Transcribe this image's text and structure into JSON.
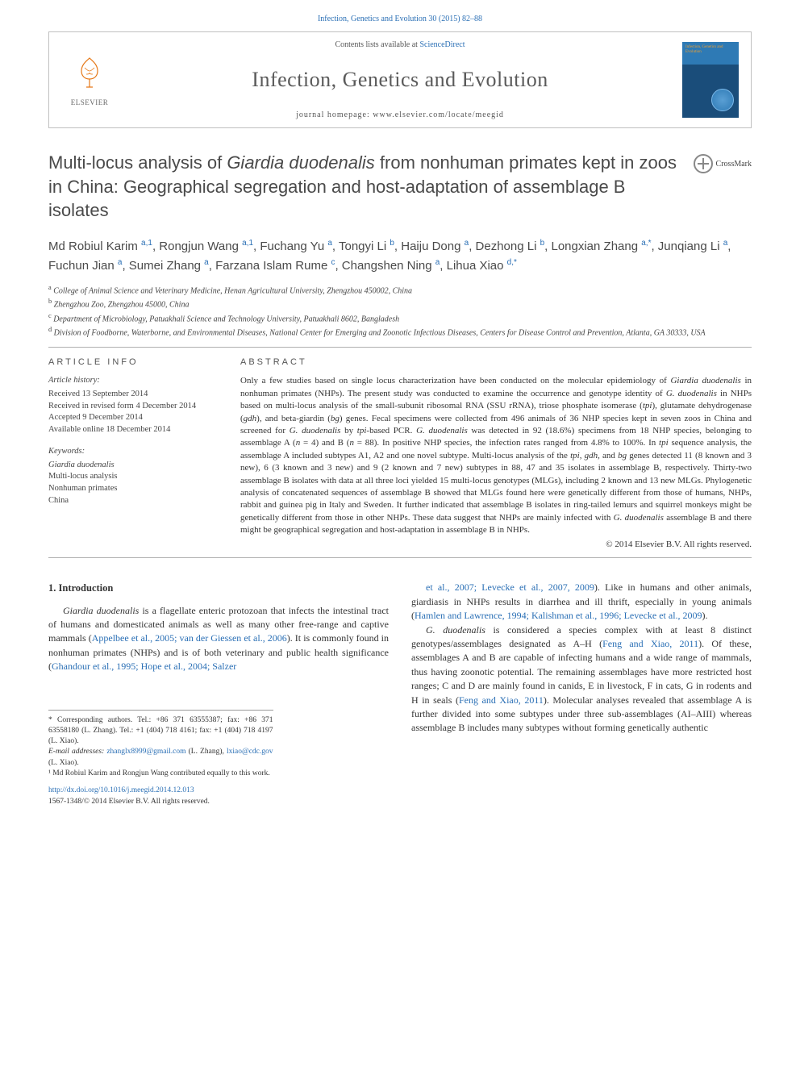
{
  "header": {
    "citation": "Infection, Genetics and Evolution 30 (2015) 82–88",
    "contents_prefix": "Contents lists available at ",
    "contents_link": "ScienceDirect",
    "journal_title": "Infection, Genetics and Evolution",
    "homepage_prefix": "journal homepage: ",
    "homepage_url": "www.elsevier.com/locate/meegid",
    "elsevier_label": "ELSEVIER",
    "cover_text": "Infection, Genetics and Evolution"
  },
  "crossmark": {
    "label": "CrossMark"
  },
  "title": {
    "html": "Multi-locus analysis of <em>Giardia duodenalis</em> from nonhuman primates kept in zoos in China: Geographical segregation and host-adaptation of assemblage B isolates"
  },
  "authors": {
    "html": "Md Robiul Karim <sup>a,1</sup>, Rongjun Wang <sup>a,1</sup>, Fuchang Yu <sup>a</sup>, Tongyi Li <sup>b</sup>, Haiju Dong <sup>a</sup>, Dezhong Li <sup>b</sup>, Longxian Zhang <sup>a,*</sup>, Junqiang Li <sup>a</sup>, Fuchun Jian <sup>a</sup>, Sumei Zhang <sup>a</sup>, Farzana Islam Rume <sup>c</sup>, Changshen Ning <sup>a</sup>, Lihua Xiao <sup>d,*</sup>"
  },
  "affiliations": [
    {
      "sup": "a",
      "text": "College of Animal Science and Veterinary Medicine, Henan Agricultural University, Zhengzhou 450002, China"
    },
    {
      "sup": "b",
      "text": "Zhengzhou Zoo, Zhengzhou 45000, China"
    },
    {
      "sup": "c",
      "text": "Department of Microbiology, Patuakhali Science and Technology University, Patuakhali 8602, Bangladesh"
    },
    {
      "sup": "d",
      "text": "Division of Foodborne, Waterborne, and Environmental Diseases, National Center for Emerging and Zoonotic Infectious Diseases, Centers for Disease Control and Prevention, Atlanta, GA 30333, USA"
    }
  ],
  "article_info": {
    "label": "ARTICLE INFO",
    "history_heading": "Article history:",
    "history": [
      "Received 13 September 2014",
      "Received in revised form 4 December 2014",
      "Accepted 9 December 2014",
      "Available online 18 December 2014"
    ],
    "keywords_heading": "Keywords:",
    "keywords": [
      "Giardia duodenalis",
      "Multi-locus analysis",
      "Nonhuman primates",
      "China"
    ]
  },
  "abstract": {
    "label": "ABSTRACT",
    "text_html": "Only a few studies based on single locus characterization have been conducted on the molecular epidemiology of <em>Giardia duodenalis</em> in nonhuman primates (NHPs). The present study was conducted to examine the occurrence and genotype identity of <em>G. duodenalis</em> in NHPs based on multi-locus analysis of the small-subunit ribosomal RNA (SSU rRNA), triose phosphate isomerase (<em>tpi</em>), glutamate dehydrogenase (<em>gdh</em>), and beta-giardin (<em>bg</em>) genes. Fecal specimens were collected from 496 animals of 36 NHP species kept in seven zoos in China and screened for <em>G. duodenalis</em> by <em>tpi</em>-based PCR. <em>G. duodenalis</em> was detected in 92 (18.6%) specimens from 18 NHP species, belonging to assemblage A (<em>n</em> = 4) and B (<em>n</em> = 88). In positive NHP species, the infection rates ranged from 4.8% to 100%. In <em>tpi</em> sequence analysis, the assemblage A included subtypes A1, A2 and one novel subtype. Multi-locus analysis of the <em>tpi</em>, <em>gdh</em>, and <em>bg</em> genes detected 11 (8 known and 3 new), 6 (3 known and 3 new) and 9 (2 known and 7 new) subtypes in 88, 47 and 35 isolates in assemblage B, respectively. Thirty-two assemblage B isolates with data at all three loci yielded 15 multi-locus genotypes (MLGs), including 2 known and 13 new MLGs. Phylogenetic analysis of concatenated sequences of assemblage B showed that MLGs found here were genetically different from those of humans, NHPs, rabbit and guinea pig in Italy and Sweden. It further indicated that assemblage B isolates in ring-tailed lemurs and squirrel monkeys might be genetically different from those in other NHPs. These data suggest that NHPs are mainly infected with <em>G. duodenalis</em> assemblage B and there might be geographical segregation and host-adaptation in assemblage B in NHPs.",
    "copyright": "© 2014 Elsevier B.V. All rights reserved."
  },
  "body": {
    "section_heading": "1. Introduction",
    "col1_html": "<em>Giardia duodenalis</em> is a flagellate enteric protozoan that infects the intestinal tract of humans and domesticated animals as well as many other free-range and captive mammals (<a href='#'>Appelbee et al., 2005; van der Giessen et al., 2006</a>). It is commonly found in nonhuman primates (NHPs) and is of both veterinary and public health significance (<a href='#'>Ghandour et al., 1995; Hope et al., 2004; Salzer</a>",
    "col2_p1_html": "<a href='#'>et al., 2007; Levecke et al., 2007, 2009</a>). Like in humans and other animals, giardiasis in NHPs results in diarrhea and ill thrift, especially in young animals (<a href='#'>Hamlen and Lawrence, 1994; Kalishman et al., 1996; Levecke et al., 2009</a>).",
    "col2_p2_html": "<em>G. duodenalis</em> is considered a species complex with at least 8 distinct genotypes/assemblages designated as A–H (<a href='#'>Feng and Xiao, 2011</a>). Of these, assemblages A and B are capable of infecting humans and a wide range of mammals, thus having zoonotic potential. The remaining assemblages have more restricted host ranges; C and D are mainly found in canids, E in livestock, F in cats, G in rodents and H in seals (<a href='#'>Feng and Xiao, 2011</a>). Molecular analyses revealed that assemblage A is further divided into some subtypes under three sub-assemblages (AI–AIII) whereas assemblage B includes many subtypes without forming genetically authentic"
  },
  "footnotes": {
    "corresponding": "* Corresponding authors. Tel.: +86 371 63555387; fax: +86 371 63558180 (L. Zhang). Tel.: +1 (404) 718 4161; fax: +1 (404) 718 4197 (L. Xiao).",
    "emails_label": "E-mail addresses: ",
    "email1": "zhanglx8999@gmail.com",
    "email1_suffix": " (L. Zhang), ",
    "email2": "lxiao@cdc.gov",
    "email2_suffix": " (L. Xiao).",
    "contrib": "¹ Md Robiul Karim and Rongjun Wang contributed equally to this work."
  },
  "footer": {
    "doi": "http://dx.doi.org/10.1016/j.meegid.2014.12.013",
    "issn_copyright": "1567-1348/© 2014 Elsevier B.V. All rights reserved."
  },
  "colors": {
    "link": "#2a6fb5",
    "text": "#333333",
    "muted": "#555555",
    "border": "#c0c0c0"
  }
}
